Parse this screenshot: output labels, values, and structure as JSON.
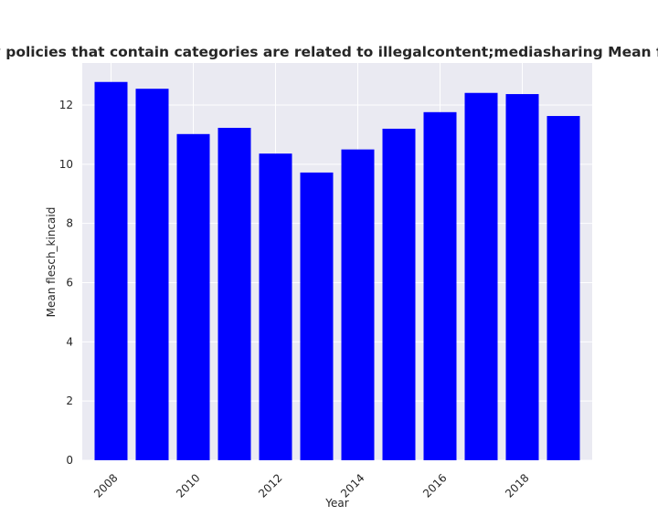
{
  "chart_data": {
    "type": "bar",
    "title": "Mean flesch_kincaid in privacy policies that contain categories are related to illegalcontent;mediasharing Mean flesch_kincaid in privacy policies",
    "xlabel": "Year",
    "ylabel": "Mean flesch_kincaid",
    "x": [
      2008,
      2009,
      2010,
      2011,
      2012,
      2013,
      2014,
      2015,
      2016,
      2017,
      2018,
      2019
    ],
    "values": [
      12.78,
      12.55,
      11.02,
      11.23,
      10.36,
      9.72,
      10.5,
      11.2,
      11.76,
      12.41,
      12.37,
      11.63
    ],
    "x_ticks": [
      2008,
      2010,
      2012,
      2014,
      2016,
      2018
    ],
    "y_ticks": [
      0,
      2,
      4,
      6,
      8,
      10,
      12
    ],
    "xlim": [
      2007.3,
      2019.7
    ],
    "ylim": [
      0,
      13.42
    ],
    "bar_color": "#0000ff",
    "background_color": "#eaeaf2",
    "grid": true,
    "legend": false
  }
}
